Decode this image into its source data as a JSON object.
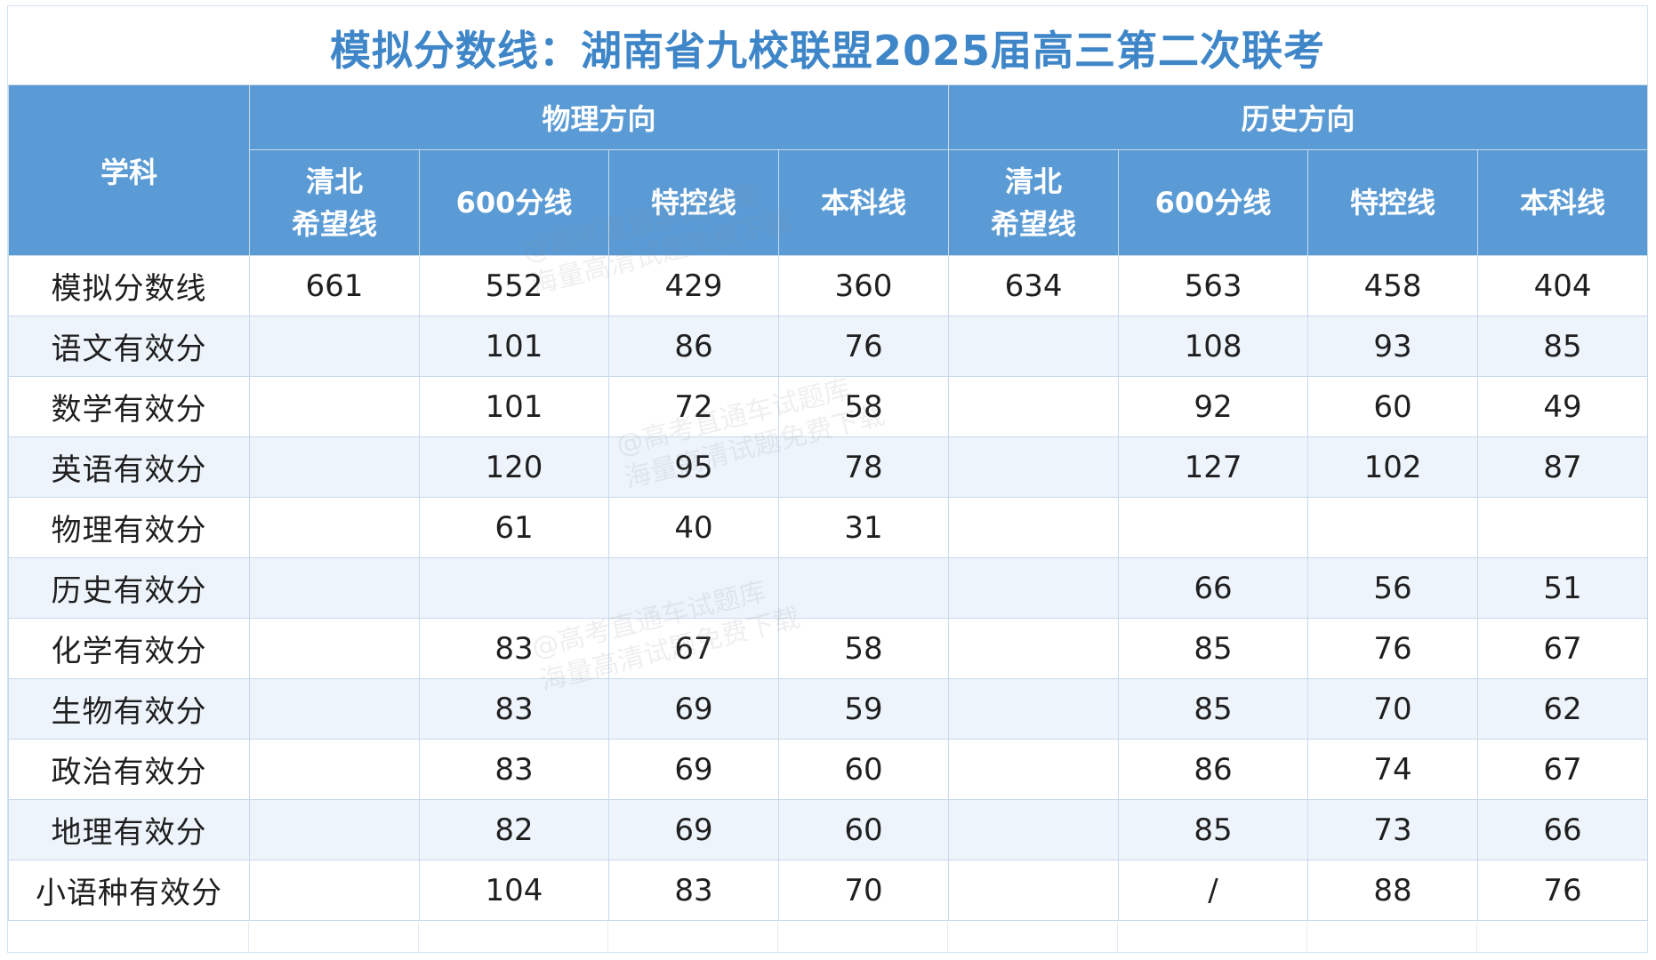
{
  "title": "模拟分数线：湖南省九校联盟2025届高三第二次联考",
  "header": {
    "subject_label": "学科",
    "groups": [
      "物理方向",
      "历史方向"
    ],
    "columns": [
      {
        "line1": "清北",
        "line2": "希望线"
      },
      {
        "line1": "600分线",
        "line2": ""
      },
      {
        "line1": "特控线",
        "line2": ""
      },
      {
        "line1": "本科线",
        "line2": ""
      },
      {
        "line1": "清北",
        "line2": "希望线"
      },
      {
        "line1": "600分线",
        "line2": ""
      },
      {
        "line1": "特控线",
        "line2": ""
      },
      {
        "line1": "本科线",
        "line2": ""
      }
    ]
  },
  "rows": [
    {
      "subject": "模拟分数线",
      "values": [
        "661",
        "552",
        "429",
        "360",
        "634",
        "563",
        "458",
        "404"
      ]
    },
    {
      "subject": "语文有效分",
      "values": [
        "",
        "101",
        "86",
        "76",
        "",
        "108",
        "93",
        "85"
      ]
    },
    {
      "subject": "数学有效分",
      "values": [
        "",
        "101",
        "72",
        "58",
        "",
        "92",
        "60",
        "49"
      ]
    },
    {
      "subject": "英语有效分",
      "values": [
        "",
        "120",
        "95",
        "78",
        "",
        "127",
        "102",
        "87"
      ]
    },
    {
      "subject": "物理有效分",
      "values": [
        "",
        "61",
        "40",
        "31",
        "",
        "",
        "",
        ""
      ]
    },
    {
      "subject": "历史有效分",
      "values": [
        "",
        "",
        "",
        "",
        "",
        "66",
        "56",
        "51"
      ]
    },
    {
      "subject": "化学有效分",
      "values": [
        "",
        "83",
        "67",
        "58",
        "",
        "85",
        "76",
        "67"
      ]
    },
    {
      "subject": "生物有效分",
      "values": [
        "",
        "83",
        "69",
        "59",
        "",
        "85",
        "70",
        "62"
      ]
    },
    {
      "subject": "政治有效分",
      "values": [
        "",
        "83",
        "69",
        "60",
        "",
        "86",
        "74",
        "67"
      ]
    },
    {
      "subject": "地理有效分",
      "values": [
        "",
        "82",
        "69",
        "60",
        "",
        "85",
        "73",
        "66"
      ]
    },
    {
      "subject": "小语种有效分",
      "values": [
        "",
        "104",
        "83",
        "70",
        "",
        "/",
        "88",
        "76"
      ]
    }
  ],
  "watermarks": [
    {
      "line1": "@高考直通车试题库",
      "line2": "海量高清试题免费下载"
    },
    {
      "line1": "@高考直通车试题库",
      "line2": "海量高清试题免费下载"
    },
    {
      "line1": "@高考直通车试题库",
      "line2": "海量高清试题免费下载"
    }
  ],
  "colors": {
    "title": "#3e86c8",
    "header_bg": "#5b9bd5",
    "header_text": "#ffffff",
    "row_alt_bg": "#eef4fb",
    "grid": "#c9d9ea"
  }
}
